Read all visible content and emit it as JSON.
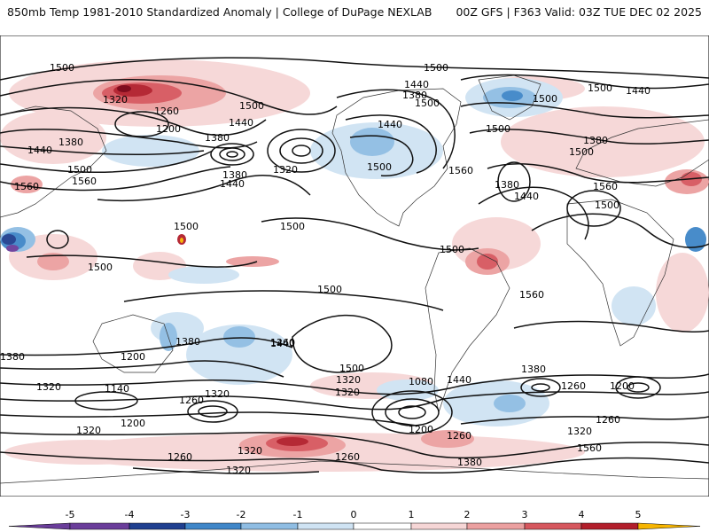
{
  "header": {
    "title_left": "850mb Temp 1981-2010 Standardized Anomaly | College of DuPage NEXLAB",
    "title_right": "00Z GFS | F363 Valid: 03Z TUE DEC 02 2025"
  },
  "colors": {
    "neg5": "#6a3d9a",
    "neg4": "#1f3f8f",
    "neg3": "#3f86c8",
    "neg2": "#8fbde3",
    "neg1": "#cfe3f3",
    "zero": "#ffffff",
    "pos1": "#f6d6d6",
    "pos2": "#eba0a0",
    "pos3": "#d6575e",
    "pos4": "#b21e2b",
    "pos5": "#7a0012",
    "max": "#f7b500",
    "contour": "#111111",
    "coast": "#333333"
  },
  "contour_labels": [
    {
      "id": "l01",
      "text": "1500"
    },
    {
      "id": "l02",
      "text": "1500"
    },
    {
      "id": "l03",
      "text": "1320"
    },
    {
      "id": "l04",
      "text": "1260"
    },
    {
      "id": "l05",
      "text": "1500"
    },
    {
      "id": "l06",
      "text": "1440"
    },
    {
      "id": "l07",
      "text": "1200"
    },
    {
      "id": "l08",
      "text": "1380"
    },
    {
      "id": "l09",
      "text": "1380"
    },
    {
      "id": "l10",
      "text": "1440"
    },
    {
      "id": "l11",
      "text": "1500"
    },
    {
      "id": "l12",
      "text": "1560"
    },
    {
      "id": "l13",
      "text": "1560"
    },
    {
      "id": "l14",
      "text": "1380"
    },
    {
      "id": "l15",
      "text": "1440"
    },
    {
      "id": "l16",
      "text": "1320"
    },
    {
      "id": "l17",
      "text": "1500"
    },
    {
      "id": "l18",
      "text": "1440"
    },
    {
      "id": "l19",
      "text": "1380"
    },
    {
      "id": "l20",
      "text": "1500"
    },
    {
      "id": "l21",
      "text": "1500"
    },
    {
      "id": "l22",
      "text": "1560"
    },
    {
      "id": "l23",
      "text": "1500"
    },
    {
      "id": "l24",
      "text": "1500"
    },
    {
      "id": "l25",
      "text": "1500"
    },
    {
      "id": "l26",
      "text": "1440"
    },
    {
      "id": "l27",
      "text": "1500"
    },
    {
      "id": "l28",
      "text": "1500"
    },
    {
      "id": "l29",
      "text": "1500"
    },
    {
      "id": "l30",
      "text": "1380"
    },
    {
      "id": "l31",
      "text": "1440"
    },
    {
      "id": "l32",
      "text": "1380"
    },
    {
      "id": "l33",
      "text": "1560"
    },
    {
      "id": "l34",
      "text": "1500"
    },
    {
      "id": "l35",
      "text": "1380"
    },
    {
      "id": "l36",
      "text": "1500"
    },
    {
      "id": "l37",
      "text": "1440"
    },
    {
      "id": "l38",
      "text": "1440"
    },
    {
      "id": "l39",
      "text": "1500"
    },
    {
      "id": "l40",
      "text": "1380"
    },
    {
      "id": "l41",
      "text": "1320"
    },
    {
      "id": "l42",
      "text": "1140"
    },
    {
      "id": "l43",
      "text": "1200"
    },
    {
      "id": "l44",
      "text": "1260"
    },
    {
      "id": "l45",
      "text": "1320"
    },
    {
      "id": "l46",
      "text": "1200"
    },
    {
      "id": "l47",
      "text": "1320"
    },
    {
      "id": "l48",
      "text": "1260"
    },
    {
      "id": "l49",
      "text": "1320"
    },
    {
      "id": "l50",
      "text": "1260"
    },
    {
      "id": "l51",
      "text": "1080"
    },
    {
      "id": "l52",
      "text": "1200"
    },
    {
      "id": "l53",
      "text": "1260"
    },
    {
      "id": "l54",
      "text": "1380"
    },
    {
      "id": "l55",
      "text": "1320"
    },
    {
      "id": "l56",
      "text": "1440"
    },
    {
      "id": "l57",
      "text": "1260"
    },
    {
      "id": "l58",
      "text": "1200"
    },
    {
      "id": "l59",
      "text": "1260"
    },
    {
      "id": "l60",
      "text": "1320"
    },
    {
      "id": "l61",
      "text": "1560"
    },
    {
      "id": "l62",
      "text": "1500"
    },
    {
      "id": "l63",
      "text": "1320"
    },
    {
      "id": "l64",
      "text": "1260"
    },
    {
      "id": "l65",
      "text": "1320"
    },
    {
      "id": "l66",
      "text": "1380"
    },
    {
      "id": "l67",
      "text": "1560"
    }
  ],
  "legend": {
    "ticks": [
      "-5",
      "-4",
      "-3",
      "-2",
      "-1",
      "0",
      "1",
      "2",
      "3",
      "4",
      "5"
    ]
  }
}
